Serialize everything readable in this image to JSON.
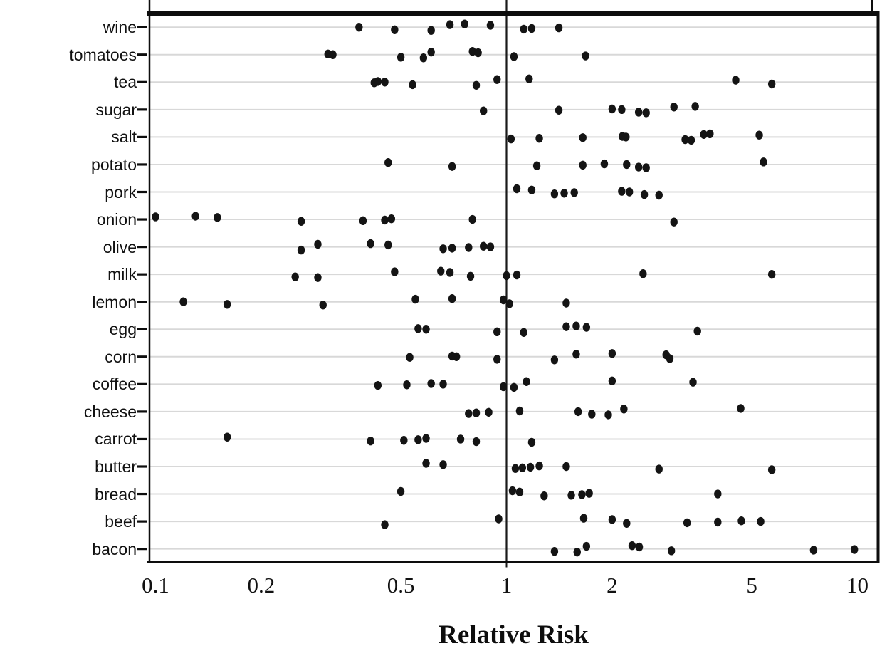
{
  "chart_data": {
    "type": "scatter",
    "variant": "horizontal-dot-plot",
    "title": "",
    "xlabel": "Relative Risk",
    "ylabel": "",
    "x_scale": "log10",
    "xlim": [
      0.096,
      11.4
    ],
    "x_ticks": [
      0.1,
      0.2,
      0.5,
      1,
      2,
      5,
      10
    ],
    "x_tick_labels": [
      "0.1",
      "0.2",
      "0.5",
      "1",
      "2",
      "5",
      "10"
    ],
    "reference_line_x": 1,
    "grid": "horizontal-gray-lines",
    "legend": "none",
    "categories": [
      "wine",
      "tomatoes",
      "tea",
      "sugar",
      "salt",
      "potato",
      "pork",
      "onion",
      "olive",
      "milk",
      "lemon",
      "egg",
      "corn",
      "coffee",
      "cheese",
      "carrot",
      "butter",
      "bread",
      "beef",
      "bacon"
    ],
    "points_by_category": {
      "wine": [
        0.38,
        0.48,
        0.61,
        0.69,
        0.76,
        0.9,
        1.12,
        1.18,
        1.41
      ],
      "tomatoes": [
        0.31,
        0.32,
        0.5,
        0.58,
        0.61,
        0.8,
        0.83,
        1.05,
        1.68
      ],
      "tea": [
        0.42,
        0.43,
        0.45,
        0.54,
        0.82,
        0.94,
        1.16,
        4.5,
        5.7
      ],
      "sugar": [
        0.86,
        1.41,
        2.0,
        2.13,
        2.38,
        2.5,
        3.0,
        3.45
      ],
      "salt": [
        1.03,
        1.24,
        1.65,
        2.14,
        2.19,
        3.23,
        3.36,
        3.65,
        3.8,
        5.25
      ],
      "potato": [
        0.46,
        0.7,
        1.22,
        1.65,
        1.9,
        2.2,
        2.38,
        2.5,
        5.4
      ],
      "pork": [
        1.07,
        1.18,
        1.37,
        1.46,
        1.56,
        2.13,
        2.24,
        2.47,
        2.72
      ],
      "onion": [
        0.1,
        0.13,
        0.15,
        0.26,
        0.39,
        0.45,
        0.47,
        0.8,
        3.0
      ],
      "olive": [
        0.26,
        0.29,
        0.41,
        0.46,
        0.66,
        0.7,
        0.78,
        0.86,
        0.9
      ],
      "milk": [
        0.25,
        0.29,
        0.48,
        0.65,
        0.69,
        0.79,
        1.0,
        1.07,
        2.45,
        5.7
      ],
      "lemon": [
        0.12,
        0.16,
        0.3,
        0.55,
        0.7,
        0.98,
        1.02,
        1.48
      ],
      "egg": [
        0.56,
        0.59,
        0.94,
        1.12,
        1.48,
        1.58,
        1.69,
        3.5
      ],
      "corn": [
        0.53,
        0.7,
        0.72,
        0.94,
        1.37,
        1.58,
        2.0,
        2.85,
        2.92
      ],
      "coffee": [
        0.43,
        0.52,
        0.61,
        0.66,
        0.98,
        1.05,
        1.14,
        2.0,
        3.4
      ],
      "cheese": [
        0.78,
        0.82,
        0.89,
        1.09,
        1.6,
        1.75,
        1.95,
        2.16,
        4.65
      ],
      "carrot": [
        0.16,
        0.41,
        0.51,
        0.56,
        0.59,
        0.74,
        0.82,
        1.18
      ],
      "butter": [
        0.59,
        0.66,
        1.06,
        1.11,
        1.17,
        1.24,
        1.48,
        2.72,
        5.7
      ],
      "bread": [
        0.5,
        1.04,
        1.09,
        1.28,
        1.53,
        1.64,
        1.72,
        4.0
      ],
      "beef": [
        0.45,
        0.95,
        1.66,
        2.0,
        2.2,
        3.27,
        4.0,
        4.67,
        5.3
      ],
      "bacon": [
        1.37,
        1.59,
        1.69,
        2.28,
        2.39,
        2.95,
        7.5,
        9.8
      ]
    },
    "colors": {
      "dot": "#141414",
      "grid": "#d8d8d8",
      "frame": "#0d0d0d",
      "reference_line": "#1a1a1a",
      "background": "#ffffff"
    }
  }
}
